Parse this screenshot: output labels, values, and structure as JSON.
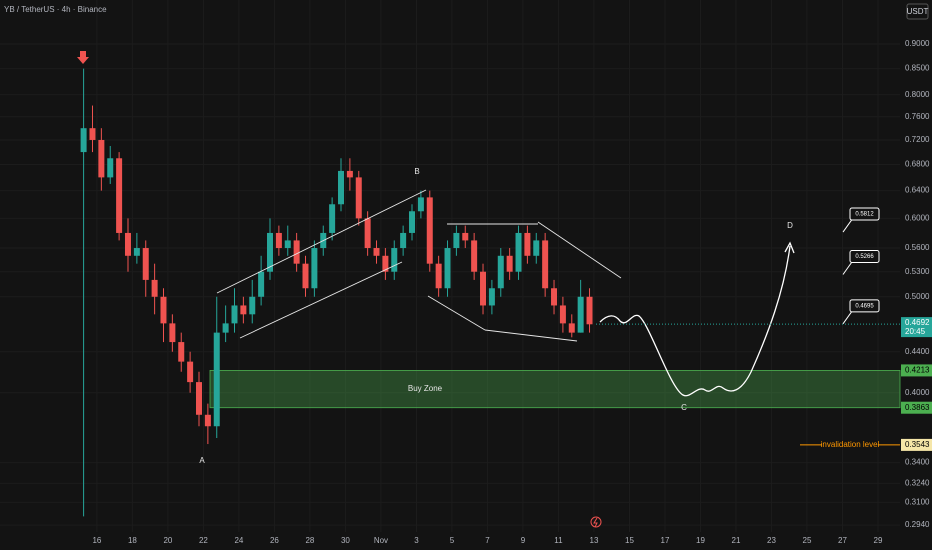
{
  "title": "YB / TetherUS · 4h · Binance",
  "currency": "USDT",
  "chart_data": {
    "type": "candlestick",
    "log_scale": true,
    "grid": true,
    "xlim": [
      10.54,
      61.24
    ],
    "ylim": [
      0.284,
      0.997
    ],
    "xticks": [
      16,
      18,
      20,
      22,
      24,
      26,
      28,
      30,
      {
        "value": 32,
        "label": "Nov"
      },
      {
        "value": 34,
        "label": "3"
      },
      {
        "value": 36,
        "label": "5"
      },
      {
        "value": 38,
        "label": "7"
      },
      {
        "value": 40,
        "label": "9"
      },
      {
        "value": 42,
        "label": "11"
      },
      {
        "value": 44,
        "label": "13"
      },
      {
        "value": 46,
        "label": "15"
      },
      {
        "value": 48,
        "label": "17"
      },
      {
        "value": 50,
        "label": "19"
      },
      {
        "value": 52,
        "label": "21"
      },
      {
        "value": 54,
        "label": "23"
      },
      {
        "value": 56,
        "label": "25"
      },
      {
        "value": 58,
        "label": "27"
      },
      {
        "value": 60,
        "label": "29"
      }
    ],
    "yticks": [
      {
        "value": 0.9,
        "label": "0.9000"
      },
      {
        "value": 0.85,
        "label": "0.8500"
      },
      {
        "value": 0.8,
        "label": "0.8000"
      },
      {
        "value": 0.76,
        "label": "0.7600"
      },
      {
        "value": 0.72,
        "label": "0.7200"
      },
      {
        "value": 0.68,
        "label": "0.6800"
      },
      {
        "value": 0.64,
        "label": "0.6400"
      },
      {
        "value": 0.6,
        "label": "0.6000"
      },
      {
        "value": 0.56,
        "label": "0.5600"
      },
      {
        "value": 0.53,
        "label": "0.5300"
      },
      {
        "value": 0.5,
        "label": "0.5000"
      },
      {
        "value": 0.44,
        "label": "0.4400"
      },
      {
        "value": 0.4,
        "label": "0.4000"
      },
      {
        "value": 0.34,
        "label": "0.3400"
      },
      {
        "value": 0.324,
        "label": "0.3240"
      },
      {
        "value": 0.31,
        "label": "0.3100"
      },
      {
        "value": 0.294,
        "label": "0.2940"
      }
    ],
    "x": [
      15.25,
      15.75,
      16.25,
      16.75,
      17.25,
      17.75,
      18.25,
      18.75,
      19.25,
      19.75,
      20.25,
      20.75,
      21.25,
      21.75,
      22.25,
      22.75,
      23.25,
      23.75,
      24.25,
      24.75,
      25.25,
      25.75,
      26.25,
      26.75,
      27.25,
      27.75,
      28.25,
      28.75,
      29.25,
      29.75,
      30.25,
      30.75,
      31.25,
      31.75,
      32.25,
      32.75,
      33.25,
      33.75,
      34.25,
      34.75,
      35.25,
      35.75,
      36.25,
      36.75,
      37.25,
      37.75,
      38.25,
      38.75,
      39.25,
      39.75,
      40.25,
      40.75,
      41.25,
      41.75,
      42.25,
      42.75,
      43.25,
      43.75
    ],
    "open": [
      0.7,
      0.74,
      0.72,
      0.66,
      0.69,
      0.58,
      0.55,
      0.56,
      0.52,
      0.5,
      0.47,
      0.45,
      0.43,
      0.41,
      0.38,
      0.37,
      0.46,
      0.47,
      0.49,
      0.48,
      0.5,
      0.53,
      0.58,
      0.56,
      0.57,
      0.54,
      0.51,
      0.56,
      0.58,
      0.62,
      0.67,
      0.66,
      0.6,
      0.56,
      0.55,
      0.53,
      0.56,
      0.58,
      0.61,
      0.63,
      0.54,
      0.51,
      0.56,
      0.58,
      0.57,
      0.53,
      0.49,
      0.51,
      0.55,
      0.53,
      0.58,
      0.55,
      0.57,
      0.51,
      0.49,
      0.47,
      0.46,
      0.5
    ],
    "high": [
      0.85,
      0.78,
      0.74,
      0.71,
      0.7,
      0.6,
      0.58,
      0.57,
      0.54,
      0.51,
      0.48,
      0.46,
      0.44,
      0.42,
      0.39,
      0.5,
      0.49,
      0.51,
      0.5,
      0.52,
      0.55,
      0.6,
      0.59,
      0.59,
      0.58,
      0.55,
      0.57,
      0.59,
      0.63,
      0.69,
      0.69,
      0.67,
      0.61,
      0.57,
      0.56,
      0.57,
      0.59,
      0.62,
      0.64,
      0.64,
      0.55,
      0.57,
      0.59,
      0.59,
      0.58,
      0.54,
      0.52,
      0.56,
      0.56,
      0.59,
      0.59,
      0.58,
      0.58,
      0.52,
      0.5,
      0.48,
      0.52,
      0.51
    ],
    "low": [
      0.3,
      0.7,
      0.64,
      0.65,
      0.57,
      0.53,
      0.54,
      0.5,
      0.48,
      0.45,
      0.44,
      0.42,
      0.4,
      0.37,
      0.355,
      0.36,
      0.45,
      0.46,
      0.47,
      0.47,
      0.49,
      0.52,
      0.55,
      0.55,
      0.53,
      0.5,
      0.5,
      0.55,
      0.57,
      0.61,
      0.64,
      0.59,
      0.55,
      0.54,
      0.52,
      0.52,
      0.55,
      0.57,
      0.6,
      0.53,
      0.5,
      0.5,
      0.55,
      0.56,
      0.52,
      0.48,
      0.48,
      0.5,
      0.52,
      0.52,
      0.54,
      0.54,
      0.5,
      0.48,
      0.46,
      0.455,
      0.46,
      0.46
    ],
    "close": [
      0.74,
      0.72,
      0.66,
      0.69,
      0.58,
      0.55,
      0.56,
      0.52,
      0.5,
      0.47,
      0.45,
      0.43,
      0.41,
      0.38,
      0.37,
      0.46,
      0.47,
      0.49,
      0.48,
      0.5,
      0.53,
      0.58,
      0.56,
      0.57,
      0.54,
      0.51,
      0.56,
      0.58,
      0.62,
      0.67,
      0.66,
      0.6,
      0.56,
      0.55,
      0.53,
      0.56,
      0.58,
      0.61,
      0.63,
      0.54,
      0.51,
      0.56,
      0.58,
      0.57,
      0.53,
      0.49,
      0.51,
      0.55,
      0.53,
      0.58,
      0.55,
      0.57,
      0.51,
      0.49,
      0.47,
      0.46,
      0.5,
      0.469
    ],
    "up_color": "#26a69a",
    "down_color": "#ef5350",
    "last_price": {
      "value": 0.4692,
      "countdown": "20:45"
    },
    "buy_zone": {
      "label": "Buy Zone",
      "top": 0.4213,
      "bottom": 0.3863,
      "color": "#4caf50"
    },
    "invalidation": {
      "label": "invalidation level",
      "value": 0.3543,
      "color": "#ff9800"
    },
    "targets": [
      0.5812,
      0.5266,
      0.4695
    ],
    "points": [
      "A",
      "B",
      "C",
      "D"
    ]
  }
}
